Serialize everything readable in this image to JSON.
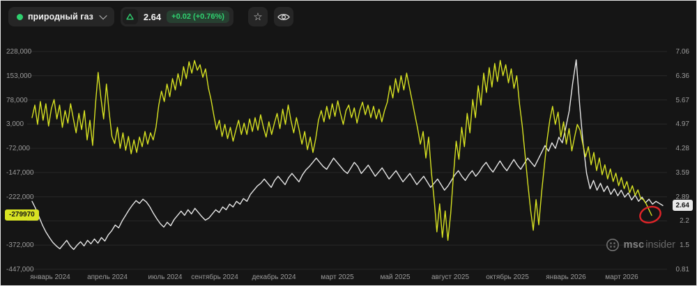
{
  "header": {
    "instrument_label": "природный газ",
    "price": "2.64",
    "change": "+0.02 (+0.76%)"
  },
  "colors": {
    "background": "#151515",
    "grid": "#282828",
    "accent_green": "#2fd06f",
    "series_yellow": "#d8e322",
    "series_white": "#e8e8e8",
    "annotation_red": "#e02428",
    "badge_yellow_bg": "#d8e322",
    "badge_price_bg": "#e9e9e9"
  },
  "watermark": {
    "bold": "msc",
    "light": "insider"
  },
  "chart_data": {
    "type": "line",
    "title": "",
    "grid": "horizontal",
    "x_labels": [
      "январь 2024",
      "апрель 2024",
      "июль 2024",
      "сентябрь 2024",
      "декабрь 2024",
      "март 2025",
      "май 2025",
      "август 2025",
      "октябрь 2025",
      "январь 2026",
      "март 2026"
    ],
    "left_axis": {
      "max": 228000,
      "min": -447000,
      "current_badge": "-279970",
      "labels": [
        {
          "text": "228,000",
          "row": 0
        },
        {
          "text": "153,000",
          "row": 1
        },
        {
          "text": "78,000",
          "row": 2
        },
        {
          "text": "3,000",
          "row": 3
        },
        {
          "text": "-72,000",
          "row": 4
        },
        {
          "text": "-147,000",
          "row": 5
        },
        {
          "text": "-222,000",
          "row": 6
        },
        {
          "text": "-372,000",
          "row": 8
        },
        {
          "text": "-447,000",
          "row": 9
        }
      ]
    },
    "right_axis": {
      "max": 7.06,
      "min": 0.81,
      "current_badge": "2.64",
      "labels": [
        {
          "text": "7.06",
          "row": 0
        },
        {
          "text": "6.36",
          "row": 1
        },
        {
          "text": "5.67",
          "row": 2
        },
        {
          "text": "4.97",
          "row": 3
        },
        {
          "text": "4.28",
          "row": 4
        },
        {
          "text": "3.59",
          "row": 5
        },
        {
          "text": "2.89",
          "row": 6
        },
        {
          "text": "2.2",
          "row": 7
        },
        {
          "text": "1.5",
          "row": 8
        },
        {
          "text": "0.81",
          "row": 9
        }
      ]
    },
    "series": [
      {
        "name": "price",
        "axis": "right",
        "color": "#e8e8e8",
        "values": [
          2.76,
          2.56,
          2.32,
          2.08,
          1.88,
          1.72,
          1.58,
          1.48,
          1.4,
          1.52,
          1.64,
          1.48,
          1.38,
          1.5,
          1.6,
          1.48,
          1.64,
          1.54,
          1.68,
          1.56,
          1.72,
          1.62,
          1.8,
          1.92,
          2.08,
          2.0,
          2.2,
          2.36,
          2.52,
          2.66,
          2.78,
          2.7,
          2.82,
          2.74,
          2.6,
          2.42,
          2.26,
          2.12,
          2.02,
          2.16,
          2.06,
          2.24,
          2.36,
          2.48,
          2.36,
          2.52,
          2.4,
          2.56,
          2.44,
          2.32,
          2.22,
          2.28,
          2.4,
          2.52,
          2.44,
          2.6,
          2.52,
          2.68,
          2.6,
          2.76,
          2.68,
          2.84,
          2.76,
          2.96,
          3.08,
          3.2,
          3.28,
          3.4,
          3.28,
          3.16,
          3.36,
          3.48,
          3.36,
          3.24,
          3.44,
          3.56,
          3.44,
          3.32,
          3.52,
          3.66,
          3.76,
          3.88,
          4.0,
          3.88,
          3.76,
          3.68,
          3.84,
          4.0,
          3.88,
          3.76,
          3.64,
          3.56,
          3.72,
          3.88,
          3.76,
          3.56,
          3.68,
          3.8,
          3.64,
          3.48,
          3.6,
          3.72,
          3.56,
          3.4,
          3.52,
          3.64,
          3.48,
          3.32,
          3.44,
          3.56,
          3.4,
          3.24,
          3.36,
          3.48,
          3.32,
          3.16,
          3.28,
          3.4,
          3.24,
          3.08,
          3.2,
          3.36,
          3.52,
          3.64,
          3.48,
          3.36,
          3.52,
          3.64,
          3.48,
          3.6,
          3.76,
          3.88,
          3.72,
          3.6,
          3.76,
          3.92,
          3.76,
          3.64,
          3.8,
          3.96,
          3.8,
          3.68,
          3.84,
          4.0,
          3.88,
          3.76,
          3.96,
          4.16,
          4.36,
          4.2,
          4.44,
          4.28,
          4.6,
          4.44,
          4.88,
          5.36,
          6.16,
          6.82,
          5.52,
          4.42,
          3.56,
          3.12,
          3.36,
          3.08,
          3.28,
          3.04,
          3.2,
          2.96,
          3.12,
          2.92,
          3.08,
          2.88,
          3.0,
          2.8,
          2.94,
          2.76,
          2.88,
          2.72,
          2.82,
          2.68,
          2.76,
          2.7,
          2.64
        ]
      },
      {
        "name": "net-positions",
        "axis": "left",
        "color": "#d8e322",
        "values": [
          23000,
          62000,
          2000,
          73000,
          15000,
          66000,
          -3000,
          51000,
          79000,
          19000,
          62000,
          -7000,
          45000,
          6000,
          66000,
          19000,
          -24000,
          36000,
          -14000,
          45000,
          -46000,
          15000,
          -63000,
          62000,
          163000,
          84000,
          19000,
          127000,
          40000,
          -35000,
          -57000,
          -7000,
          -72000,
          -24000,
          -78000,
          -35000,
          -89000,
          -46000,
          -85000,
          -37000,
          -67000,
          -20000,
          -59000,
          -24000,
          -46000,
          -7000,
          62000,
          105000,
          73000,
          127000,
          88000,
          144000,
          109000,
          159000,
          122000,
          181000,
          144000,
          196000,
          161000,
          200000,
          170000,
          187000,
          148000,
          174000,
          116000,
          79000,
          30000,
          -14000,
          15000,
          -35000,
          2000,
          -42000,
          -7000,
          -50000,
          -16000,
          15000,
          -29000,
          6000,
          -29000,
          19000,
          -20000,
          23000,
          -16000,
          32000,
          -7000,
          -37000,
          10000,
          -29000,
          6000,
          36000,
          -11000,
          49000,
          2000,
          62000,
          15000,
          -24000,
          23000,
          -16000,
          -59000,
          -20000,
          -76000,
          -37000,
          -85000,
          -42000,
          15000,
          45000,
          10000,
          58000,
          19000,
          66000,
          27000,
          75000,
          36000,
          2000,
          45000,
          62000,
          23000,
          53000,
          6000,
          45000,
          71000,
          32000,
          62000,
          23000,
          58000,
          19000,
          49000,
          10000,
          45000,
          71000,
          122000,
          84000,
          144000,
          101000,
          153000,
          109000,
          161000,
          118000,
          75000,
          32000,
          -11000,
          -59000,
          -20000,
          -102000,
          -37000,
          -145000,
          -231000,
          -331000,
          -244000,
          -348000,
          -266000,
          -357000,
          -275000,
          -158000,
          -50000,
          -106000,
          -7000,
          -67000,
          36000,
          -24000,
          79000,
          23000,
          122000,
          62000,
          161000,
          101000,
          178000,
          118000,
          191000,
          135000,
          200000,
          153000,
          187000,
          131000,
          174000,
          114000,
          153000,
          66000,
          -3000,
          -89000,
          -180000,
          -262000,
          -326000,
          -231000,
          -309000,
          -210000,
          -128000,
          -46000,
          15000,
          58000,
          2000,
          40000,
          -37000,
          10000,
          -59000,
          -11000,
          -80000,
          -37000,
          2000,
          -16000,
          -59000,
          -98000,
          -67000,
          -123000,
          -85000,
          -141000,
          -102000,
          -154000,
          -123000,
          -167000,
          -136000,
          -175000,
          -149000,
          -188000,
          -162000,
          -197000,
          -175000,
          -210000,
          -188000,
          -218000,
          -201000,
          -227000,
          -231000,
          -244000,
          -262000,
          -279970
        ]
      }
    ],
    "annotation": {
      "type": "ellipse",
      "color": "#e02428",
      "marks": "latest value of yellow series"
    }
  }
}
